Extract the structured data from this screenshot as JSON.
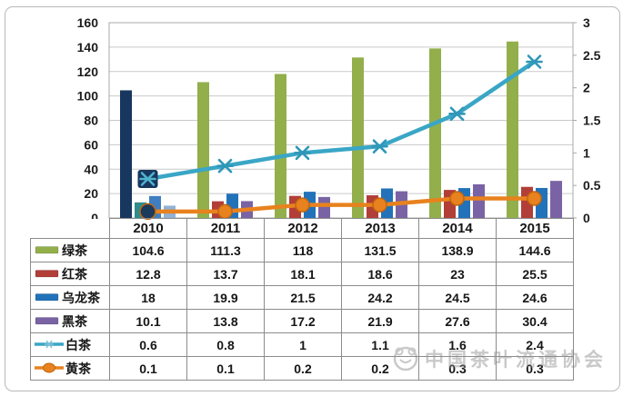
{
  "watermark": {
    "text": "中国茶叶流通协会"
  },
  "chart_data": {
    "type": "bar",
    "subtype": "combo-bar-line-dual-axis",
    "title": "",
    "xlabel": "",
    "ylabel_left": "",
    "ylabel_right": "",
    "grid": "horizontal",
    "legend_position": "table-left",
    "categories": [
      "2010",
      "2011",
      "2012",
      "2013",
      "2014",
      "2015"
    ],
    "series": [
      {
        "name": "绿茶",
        "type": "bar",
        "axis": "left",
        "values": [
          104.6,
          111.3,
          118,
          131.5,
          138.9,
          144.6
        ],
        "color": "#92AF4B",
        "color_2010": "#17375E"
      },
      {
        "name": "红茶",
        "type": "bar",
        "axis": "left",
        "values": [
          12.8,
          13.7,
          18.1,
          18.6,
          23,
          25.5
        ],
        "color": "#B23E38",
        "color_2010": "#2F8C8C"
      },
      {
        "name": "乌龙茶",
        "type": "bar",
        "axis": "left",
        "values": [
          18,
          19.9,
          21.5,
          24.2,
          24.5,
          24.6
        ],
        "color": "#2272BA",
        "color_2010": "#3F7FC1"
      },
      {
        "name": "黑茶",
        "type": "bar",
        "axis": "left",
        "values": [
          10.1,
          13.8,
          17.2,
          21.9,
          27.6,
          30.4
        ],
        "color": "#7A63A4",
        "color_2010": "#92B1D5"
      },
      {
        "name": "白茶",
        "type": "line",
        "axis": "right",
        "values": [
          0.6,
          0.8,
          1,
          1.1,
          1.6,
          2.4
        ],
        "color": "#3AA6C6",
        "marker": "asterisk",
        "marker_2010_box": "#17375E"
      },
      {
        "name": "黄茶",
        "type": "line",
        "axis": "right",
        "values": [
          0.1,
          0.1,
          0.2,
          0.2,
          0.3,
          0.3
        ],
        "color": "#E8821E",
        "marker": "circle",
        "marker_2010_fill": "#1B3A5C"
      }
    ],
    "left_axis": {
      "min": 0,
      "max": 160,
      "step": 20,
      "ticks": [
        "160",
        "140",
        "120",
        "100",
        "80",
        "60",
        "40",
        "20",
        "0"
      ]
    },
    "right_axis": {
      "min": 0,
      "max": 3,
      "step": 0.5,
      "ticks": [
        "3",
        "2.5",
        "2",
        "1.5",
        "1",
        "0.5",
        "0"
      ]
    }
  }
}
